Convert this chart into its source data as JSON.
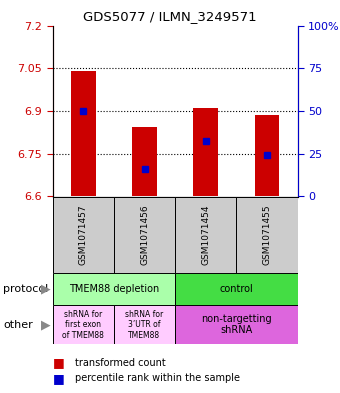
{
  "title": "GDS5077 / ILMN_3249571",
  "samples": [
    "GSM1071457",
    "GSM1071456",
    "GSM1071454",
    "GSM1071455"
  ],
  "bar_bottoms": [
    6.6,
    6.6,
    6.6,
    6.6
  ],
  "bar_tops": [
    7.04,
    6.845,
    6.91,
    6.885
  ],
  "percentile_values": [
    6.9,
    6.695,
    6.795,
    6.745
  ],
  "ylim_left": [
    6.6,
    7.2
  ],
  "yticks_left": [
    6.6,
    6.75,
    6.9,
    7.05,
    7.2
  ],
  "yticks_right": [
    0,
    25,
    50,
    75,
    100
  ],
  "bar_color": "#cc0000",
  "percentile_color": "#0000cc",
  "protocol_color_left": "#aaffaa",
  "protocol_color_right": "#44dd44",
  "other_color_left": "#ffccff",
  "other_color_right": "#dd66dd",
  "protocol_labels": [
    "TMEM88 depletion",
    "control"
  ],
  "other_label_col1": "shRNA for\nfirst exon\nof TMEM88",
  "other_label_col2": "shRNA for\n3’UTR of\nTMEM88",
  "other_label_right": "non-targetting\nshRNA",
  "legend_red_label": "transformed count",
  "legend_blue_label": "percentile rank within the sample",
  "row_label_protocol": "protocol",
  "row_label_other": "other",
  "tick_label_color_left": "#cc0000",
  "tick_label_color_right": "#0000cc",
  "bar_width": 0.4
}
